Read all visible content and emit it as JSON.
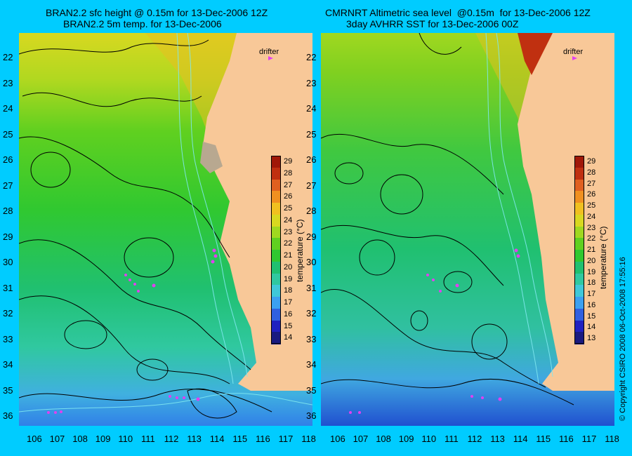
{
  "titles": {
    "left_line1": "BRAN2.2 sfc height @ 0.15m for 13-Dec-2006 12Z",
    "left_line2": "BRAN2.2 5m temp. for 13-Dec-2006",
    "right_line1": "CMRNRT Altimetric sea level  @0.15m  for 13-Dec-2006 12Z",
    "right_line2": "3day AVHRR SST for 13-Dec-2006 00Z"
  },
  "latitudes": [
    "22",
    "23",
    "24",
    "25",
    "26",
    "27",
    "28",
    "29",
    "30",
    "31",
    "32",
    "33",
    "34",
    "35",
    "36"
  ],
  "longitudes": [
    "106",
    "107",
    "108",
    "109",
    "110",
    "111",
    "112",
    "113",
    "114",
    "115",
    "116",
    "117",
    "118"
  ],
  "drifter_label": "drifter",
  "colorbar": {
    "label": "temperature (°C)",
    "left_ticks": [
      "29",
      "28",
      "27",
      "26",
      "25",
      "24",
      "23",
      "22",
      "21",
      "20",
      "19",
      "18",
      "17",
      "16",
      "15",
      "14"
    ],
    "right_ticks": [
      "29",
      "28",
      "27",
      "26",
      "25",
      "24",
      "23",
      "22",
      "21",
      "20",
      "19",
      "18",
      "17",
      "16",
      "15",
      "14",
      "13"
    ],
    "colors": [
      "#1a1a80",
      "#2020c0",
      "#3060e0",
      "#3ca0f0",
      "#40c8d8",
      "#30c8a0",
      "#20c070",
      "#30c830",
      "#60d020",
      "#a0d820",
      "#d8d820",
      "#f0c020",
      "#f09020",
      "#e06020",
      "#c03010",
      "#a01808"
    ]
  },
  "land_color": "#f8c898",
  "copyright": "© Copyright CSIRO 2008   06-Oct-2008 17:55:16"
}
